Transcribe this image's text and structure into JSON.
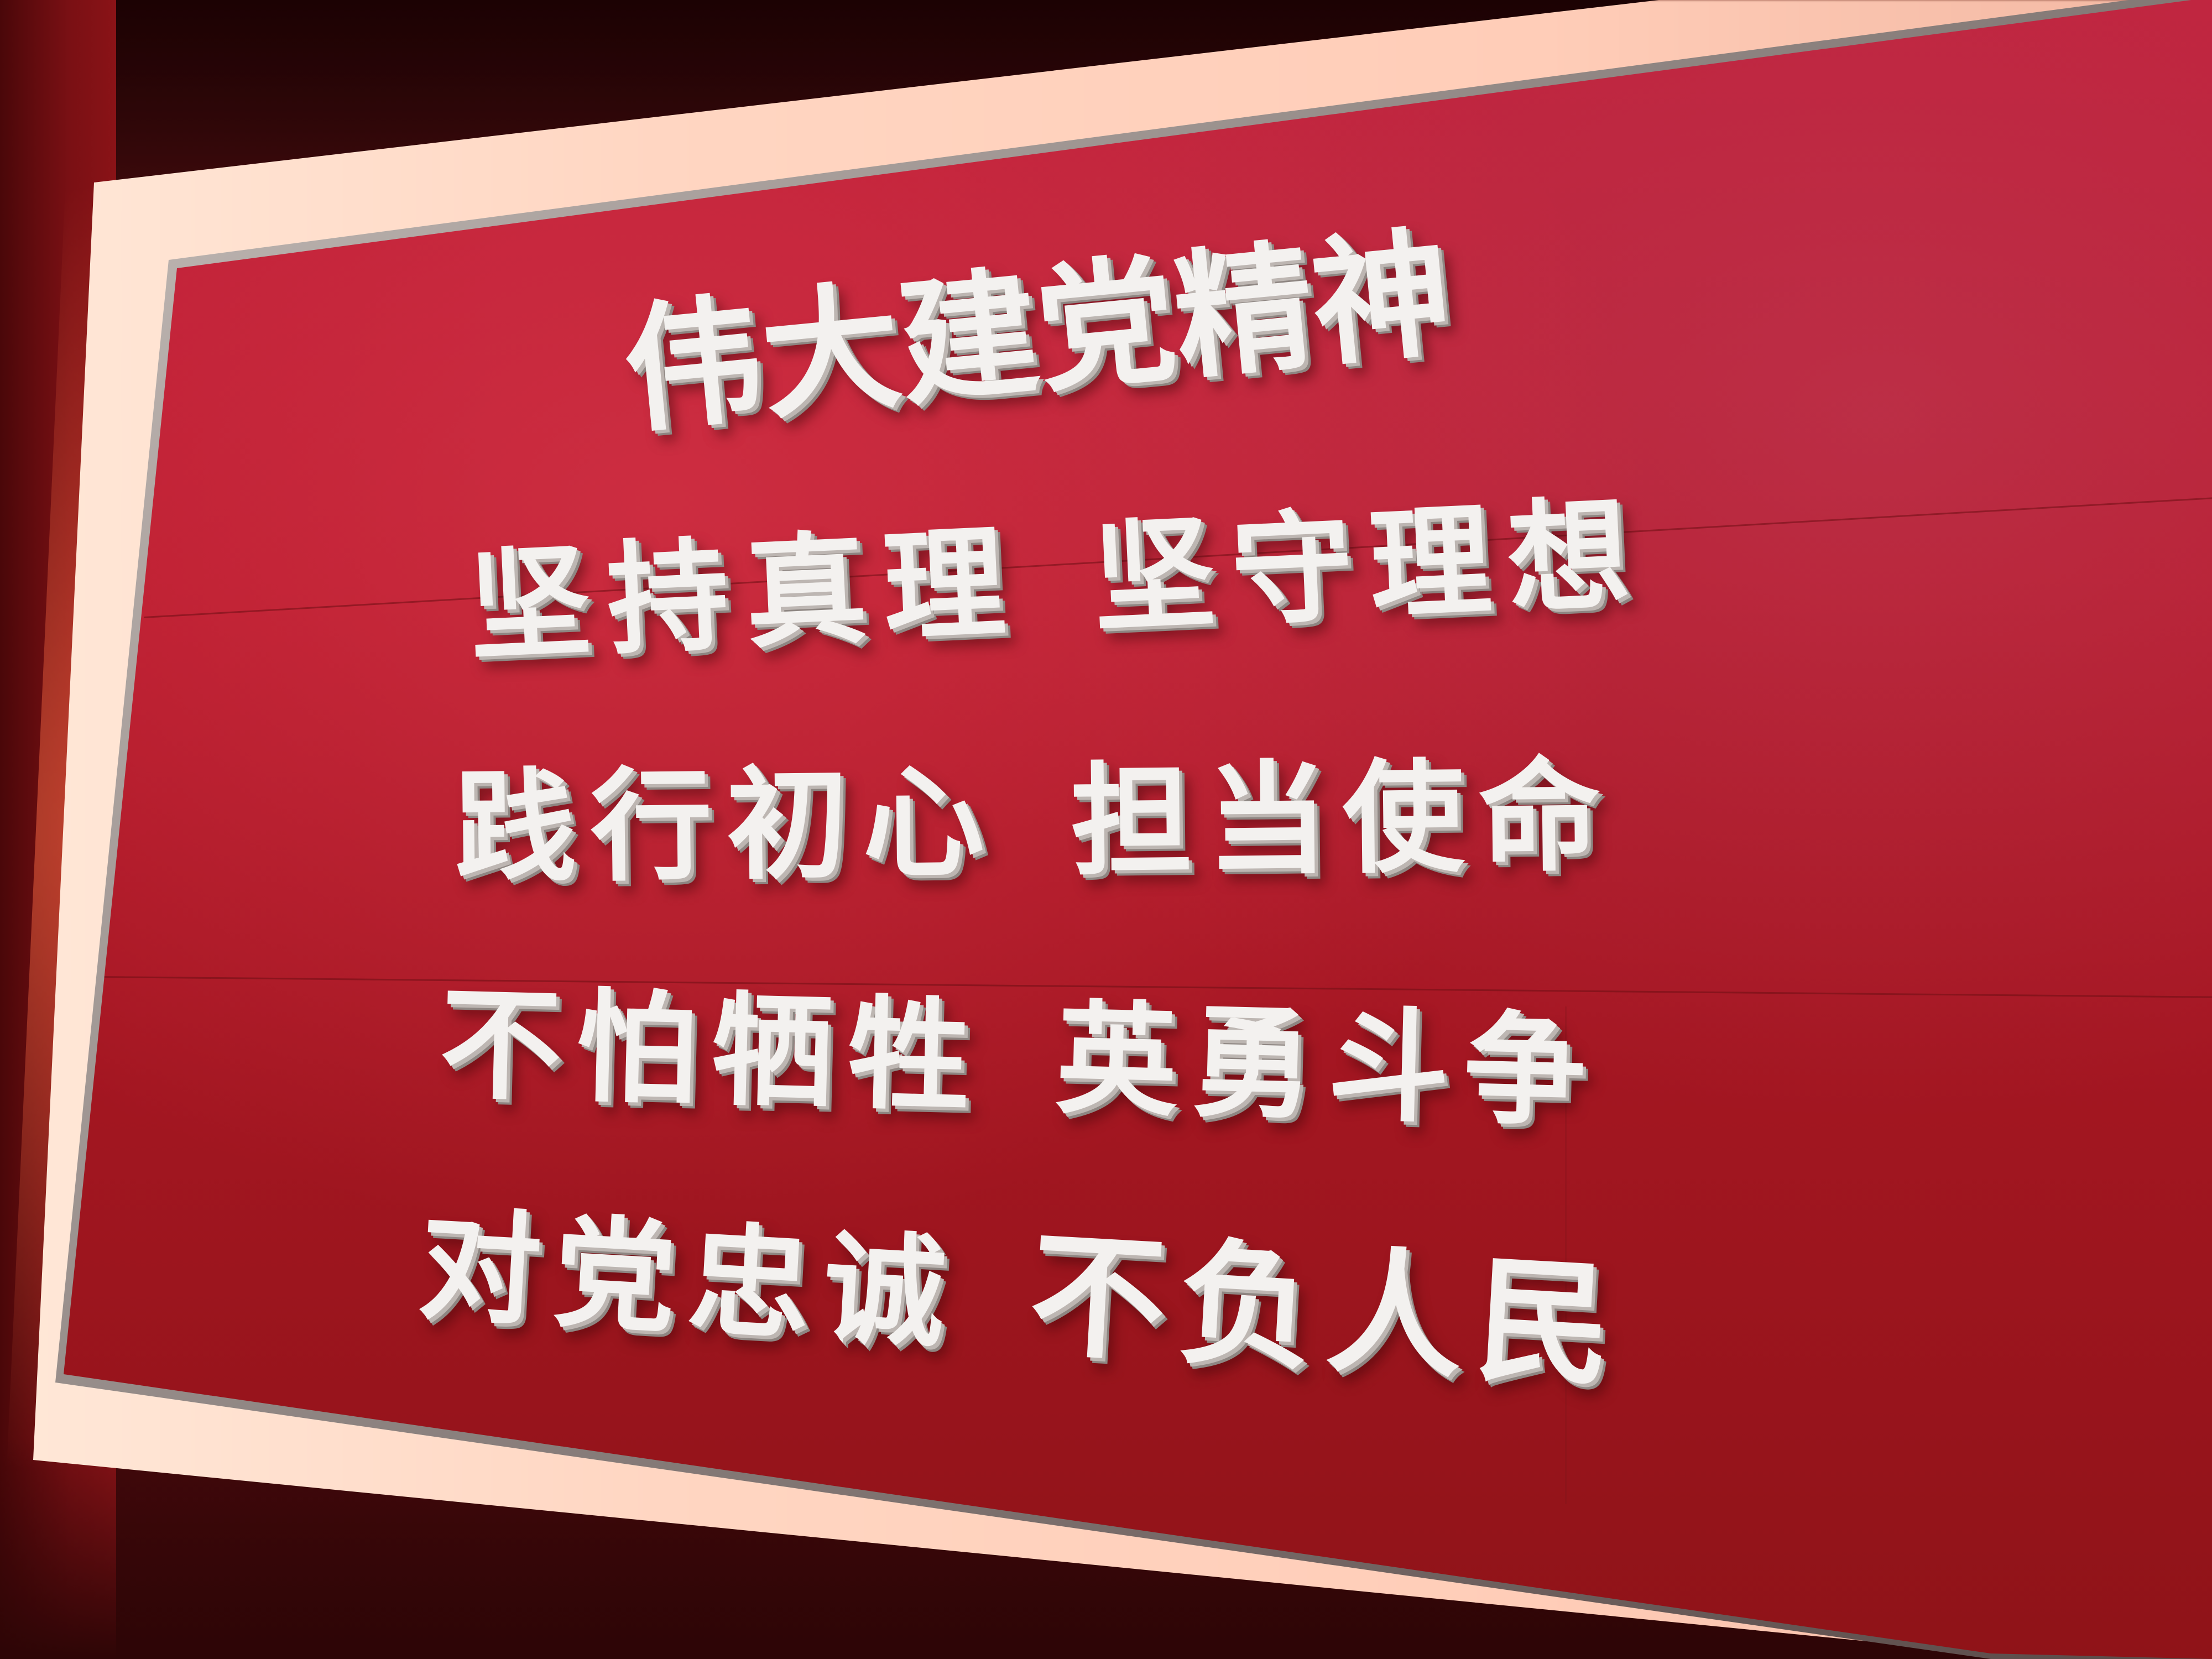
{
  "board": {
    "title": "伟大建党精神",
    "lines": [
      {
        "left": "坚持真理",
        "right": "坚守理想"
      },
      {
        "left": "践行初心",
        "right": "担当使命"
      },
      {
        "left": "不怕牺牲",
        "right": "英勇斗争"
      },
      {
        "left": "对党忠诚",
        "right": "不负人民"
      }
    ]
  },
  "colors": {
    "board_red": "#b81a2c",
    "letter_white": "#f3f1ef",
    "frame_glow": "#ffd6c2"
  }
}
